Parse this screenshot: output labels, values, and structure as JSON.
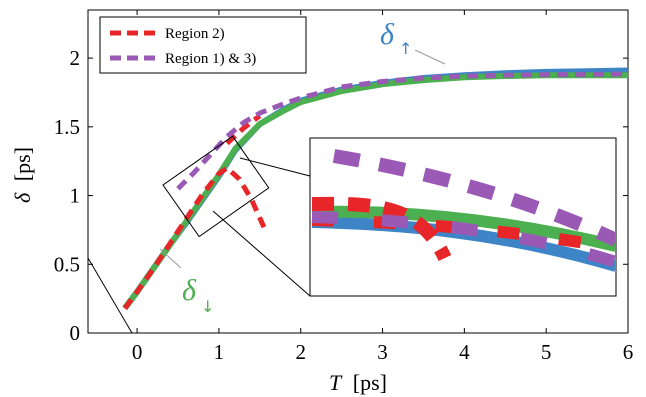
{
  "chart_data": {
    "type": "line",
    "xlabel_var": "T",
    "xlabel_unit": "[ps]",
    "ylabel_var": "δ",
    "ylabel_unit": "[ps]",
    "xlim": [
      -0.6,
      6
    ],
    "ylim": [
      0,
      2.35
    ],
    "x_ticks": [
      0,
      1,
      2,
      3,
      4,
      5,
      6
    ],
    "y_ticks": [
      0,
      0.5,
      1,
      1.5,
      2
    ],
    "legend_position": "top-left",
    "legend": [
      {
        "label": "Region 2)",
        "color": "#e8262a",
        "style": "dashed"
      },
      {
        "label": "Region 1) & 3)",
        "color": "#9b59b6",
        "style": "dashed"
      }
    ],
    "annotations": [
      {
        "symbol": "δ",
        "sub": "↑",
        "color": "#3d85c6",
        "x": 3.35,
        "y": 2.05
      },
      {
        "symbol": "δ",
        "sub": "↓",
        "color": "#4caf50",
        "x": 0.65,
        "y": 0.35
      }
    ],
    "series": [
      {
        "id": "delta_up",
        "color": "#3d85c6",
        "style": "solid",
        "x": [
          -0.15,
          0.0,
          0.2,
          0.4,
          0.6,
          0.8,
          1.0,
          1.2,
          1.5,
          1.8,
          2.0,
          2.5,
          3.0,
          3.5,
          4.0,
          4.5,
          5.0,
          5.5,
          6.0
        ],
        "y": [
          0.18,
          0.3,
          0.47,
          0.64,
          0.8,
          0.97,
          1.14,
          1.33,
          1.52,
          1.63,
          1.69,
          1.77,
          1.82,
          1.855,
          1.875,
          1.89,
          1.9,
          1.905,
          1.91
        ]
      },
      {
        "id": "delta_down",
        "color": "#4caf50",
        "style": "solid",
        "x": [
          -0.15,
          0.0,
          0.2,
          0.4,
          0.6,
          0.8,
          1.0,
          1.2,
          1.5,
          1.8,
          2.0,
          2.5,
          3.0,
          3.5,
          4.0,
          4.5,
          5.0,
          5.5,
          6.0
        ],
        "y": [
          0.18,
          0.3,
          0.47,
          0.64,
          0.81,
          0.98,
          1.15,
          1.34,
          1.52,
          1.62,
          1.68,
          1.76,
          1.81,
          1.84,
          1.86,
          1.87,
          1.875,
          1.875,
          1.875
        ]
      },
      {
        "id": "region2",
        "color": "#e8262a",
        "style": "dashed",
        "x": [
          -0.15,
          0.0,
          0.2,
          0.4,
          0.6,
          0.8,
          1.0,
          1.1,
          1.25,
          1.4,
          1.55
        ],
        "y": [
          0.18,
          0.3,
          0.47,
          0.65,
          0.83,
          1.01,
          1.16,
          1.2,
          1.12,
          0.97,
          0.77
        ]
      },
      {
        "id": "region2_upper",
        "color": "#e8262a",
        "style": "dashed",
        "x": [
          1.1,
          1.3,
          1.5
        ],
        "y": [
          1.38,
          1.49,
          1.58
        ]
      },
      {
        "id": "region13",
        "color": "#9b59b6",
        "style": "dashed",
        "x": [
          0.5,
          0.7,
          0.9,
          1.1,
          1.3,
          1.5,
          1.8,
          2.0,
          2.5,
          3.0,
          3.5,
          4.0,
          4.5,
          5.0,
          5.5,
          6.0
        ],
        "y": [
          1.05,
          1.17,
          1.3,
          1.43,
          1.53,
          1.6,
          1.67,
          1.71,
          1.79,
          1.83,
          1.855,
          1.87,
          1.875,
          1.88,
          1.88,
          1.885
        ]
      }
    ]
  }
}
